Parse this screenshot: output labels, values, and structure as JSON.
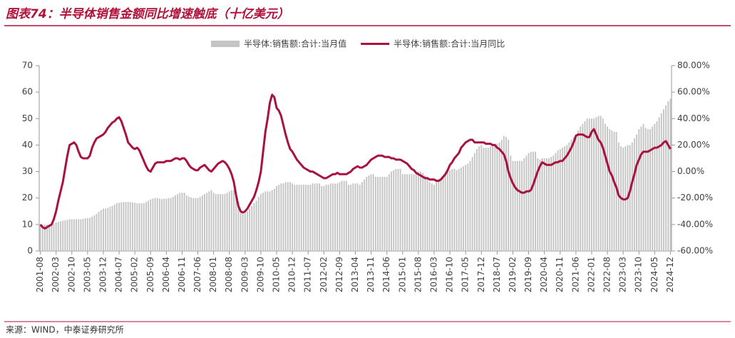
{
  "chart_data": {
    "type": "bar-line",
    "title": "图表74：半导体销售金额同比增速触底（十亿美元）",
    "source": "来源：WIND，中泰证券研究所",
    "categories": [
      "2001-08",
      null,
      null,
      null,
      null,
      null,
      null,
      "2002-03",
      null,
      null,
      null,
      null,
      null,
      null,
      "2002-10",
      null,
      null,
      null,
      null,
      null,
      null,
      "2003-05",
      null,
      null,
      null,
      null,
      null,
      null,
      "2003-12",
      null,
      null,
      null,
      null,
      null,
      null,
      "2004-07",
      null,
      null,
      null,
      null,
      null,
      null,
      "2005-02",
      null,
      null,
      null,
      null,
      null,
      null,
      "2005-09",
      null,
      null,
      null,
      null,
      null,
      null,
      "2006-04",
      null,
      null,
      null,
      null,
      null,
      null,
      "2006-11",
      null,
      null,
      null,
      null,
      null,
      null,
      "2007-06",
      null,
      null,
      null,
      null,
      null,
      null,
      "2008-01",
      null,
      null,
      null,
      null,
      null,
      null,
      "2008-08",
      null,
      null,
      null,
      null,
      null,
      null,
      "2009-03",
      null,
      null,
      null,
      null,
      null,
      null,
      "2009-10",
      null,
      null,
      null,
      null,
      null,
      null,
      "2010-05",
      null,
      null,
      null,
      null,
      null,
      null,
      "2010-12",
      null,
      null,
      null,
      null,
      null,
      null,
      "2011-07",
      null,
      null,
      null,
      null,
      null,
      null,
      "2012-02",
      null,
      null,
      null,
      null,
      null,
      null,
      "2012-09",
      null,
      null,
      null,
      null,
      null,
      null,
      "2013-04",
      null,
      null,
      null,
      null,
      null,
      null,
      "2013-11",
      null,
      null,
      null,
      null,
      null,
      null,
      "2014-06",
      null,
      null,
      null,
      null,
      null,
      null,
      "2015-01",
      null,
      null,
      null,
      null,
      null,
      null,
      "2015-08",
      null,
      null,
      null,
      null,
      null,
      null,
      "2016-03",
      null,
      null,
      null,
      null,
      null,
      null,
      "2016-10",
      null,
      null,
      null,
      null,
      null,
      null,
      "2017-05",
      null,
      null,
      null,
      null,
      null,
      null,
      "2017-12",
      null,
      null,
      null,
      null,
      null,
      null,
      "2018-07",
      null,
      null,
      null,
      null,
      null,
      null,
      "2019-02",
      null,
      null,
      null,
      null,
      null,
      null,
      "2019-09",
      null,
      null,
      null,
      null,
      null,
      null,
      "2020-04",
      null,
      null,
      null,
      null,
      null,
      null,
      "2020-11",
      null,
      null,
      null,
      null,
      null,
      null,
      "2021-06",
      null,
      null,
      null,
      null,
      null,
      null,
      "2022-01",
      null,
      null,
      null,
      null,
      null,
      null,
      "2022-08",
      null,
      null,
      null,
      null,
      null,
      null,
      "2023-03",
      null,
      null,
      null,
      null,
      null,
      null,
      "2023-10",
      null,
      null,
      null,
      null,
      null,
      null,
      "2024-05",
      null,
      null,
      null,
      null,
      null,
      null,
      "2024-12"
    ],
    "series": [
      {
        "name": "半导体:销售额:合计:当月值",
        "type": "bar",
        "color": "#c4c4c4",
        "values": [
          9.5,
          10,
          10,
          10,
          10,
          10.2,
          10.4,
          10.8,
          11,
          11.2,
          11.5,
          11.6,
          11.8,
          12,
          12,
          12,
          12,
          12,
          12,
          12.2,
          12.3,
          12.4,
          12.5,
          13,
          13.5,
          14,
          14.8,
          15.5,
          16,
          16,
          16.3,
          16.7,
          17,
          17.5,
          18,
          18.2,
          18.4,
          18.5,
          18.5,
          18.5,
          18.5,
          18.3,
          18.2,
          18,
          18,
          18,
          18,
          18.5,
          19,
          19.5,
          19.8,
          20,
          20,
          19.8,
          19.6,
          19.7,
          19.8,
          20,
          20,
          20.5,
          21,
          21.5,
          22,
          22,
          22,
          21,
          20.5,
          20.2,
          20,
          20,
          20,
          20.5,
          21,
          21.5,
          22,
          22.5,
          23,
          22,
          21.5,
          21.5,
          21.5,
          21.5,
          21.5,
          22,
          22.5,
          23,
          23,
          21,
          18,
          15,
          14,
          14.5,
          15,
          16,
          17,
          18,
          19,
          20.5,
          21.5,
          22,
          22.5,
          22.5,
          22.5,
          23,
          23.5,
          24.5,
          25,
          25.5,
          25.5,
          26,
          26,
          26,
          25.5,
          25,
          25,
          25,
          25,
          25,
          25,
          25,
          25,
          25.5,
          25.5,
          25.5,
          25.5,
          24.5,
          24.5,
          25,
          25,
          25.5,
          25.5,
          25.5,
          25.5,
          26,
          26.5,
          26.5,
          26.5,
          25,
          25,
          25.5,
          25.5,
          25.5,
          25,
          26,
          27,
          28,
          28.5,
          29,
          29,
          28,
          28,
          28,
          28,
          28,
          28,
          29,
          30,
          30.5,
          31,
          31,
          31,
          29,
          29,
          29,
          29,
          29,
          29,
          29.5,
          30,
          30,
          29.5,
          28.5,
          28,
          26,
          25.5,
          25,
          26,
          27,
          27.5,
          28,
          29,
          30,
          30.5,
          31,
          31,
          30.5,
          31,
          31.5,
          32,
          32.5,
          33,
          34,
          35.5,
          37,
          38.5,
          39.5,
          40,
          39,
          39,
          39,
          39.5,
          40,
          40,
          40.5,
          41,
          42,
          43.5,
          43,
          42,
          36,
          34,
          34,
          34,
          34,
          34,
          35,
          36,
          37,
          37.5,
          37.5,
          37.5,
          35,
          34.5,
          35,
          35,
          35,
          35,
          35.5,
          36,
          37,
          38,
          38.5,
          39,
          39.5,
          40,
          41,
          42,
          43,
          44,
          45.5,
          47,
          48,
          49,
          50,
          50,
          50,
          50,
          50.5,
          51,
          51,
          50,
          48,
          47,
          46,
          45.5,
          45,
          45,
          41,
          39.5,
          39,
          39.5,
          40,
          40,
          41,
          42.5,
          44,
          46,
          47,
          48,
          46.5,
          46,
          46,
          47,
          48,
          49,
          50.5,
          52,
          53.5,
          55,
          56.5,
          57.5
        ]
      },
      {
        "name": "半导体:销售额:合计:当月同比",
        "type": "line",
        "axis": "y2",
        "color": "#a8123e",
        "values": [
          -40,
          -42,
          -43,
          -42,
          -41,
          -40,
          -36,
          -30,
          -22,
          -15,
          -8,
          2,
          12,
          20,
          21,
          22,
          20,
          15,
          11,
          10,
          10,
          10,
          12,
          18,
          22,
          25,
          26,
          27,
          28,
          30,
          33,
          35,
          37,
          38,
          40,
          41,
          38,
          33,
          28,
          22,
          20,
          18,
          17,
          18,
          16,
          12,
          8,
          4,
          1,
          0,
          3,
          6,
          7,
          7,
          7,
          7,
          8,
          8,
          8,
          9,
          10,
          10,
          9,
          10,
          10,
          8,
          5,
          3,
          2,
          1,
          1,
          3,
          4,
          5,
          3,
          1,
          0,
          2,
          4,
          6,
          7,
          8,
          7,
          5,
          2,
          -2,
          -8,
          -18,
          -26,
          -30,
          -31,
          -30,
          -28,
          -25,
          -22,
          -19,
          -14,
          -8,
          0,
          15,
          30,
          40,
          52,
          58,
          56,
          48,
          46,
          42,
          35,
          28,
          22,
          17,
          15,
          12,
          9,
          7,
          5,
          3,
          2,
          1,
          0,
          0,
          -1,
          -2,
          -3,
          -4,
          -5,
          -5,
          -4,
          -3,
          -2,
          -2,
          -1,
          -2,
          -2,
          -2,
          -2,
          -1,
          0,
          2,
          3,
          4,
          3,
          3,
          4,
          5,
          7,
          9,
          10,
          11,
          12,
          12,
          12,
          11,
          11,
          11,
          10,
          10,
          9,
          9,
          9,
          8,
          7,
          6,
          4,
          2,
          1,
          -1,
          -2,
          -3,
          -4,
          -5,
          -5,
          -6,
          -6,
          -6,
          -7,
          -7,
          -6,
          -4,
          -2,
          1,
          5,
          7,
          10,
          12,
          14,
          18,
          20,
          22,
          23,
          24,
          24,
          22,
          22,
          22,
          22,
          22,
          21,
          21,
          21,
          20,
          20,
          18,
          17,
          15,
          13,
          8,
          0,
          -5,
          -9,
          -12,
          -14,
          -15,
          -16,
          -16,
          -15,
          -15,
          -14,
          -10,
          -5,
          0,
          4,
          7,
          6,
          5,
          5,
          5,
          6,
          7,
          7,
          8,
          8,
          10,
          12,
          15,
          18,
          22,
          27,
          28,
          28,
          28,
          27,
          26,
          26,
          30,
          32,
          28,
          24,
          22,
          18,
          12,
          6,
          0,
          -3,
          -8,
          -12,
          -18,
          -20,
          -21,
          -21,
          -20,
          -15,
          -8,
          -2,
          5,
          9,
          13,
          15,
          15,
          15,
          16,
          17,
          18,
          18,
          19,
          20,
          22,
          23,
          20,
          17
        ]
      }
    ],
    "ylim": [
      0,
      70
    ],
    "yticks": [
      0,
      10,
      20,
      30,
      40,
      50,
      60,
      70
    ],
    "y2lim": [
      -60,
      80
    ],
    "y2ticks": [
      {
        "value": -60,
        "label": "-60.00%"
      },
      {
        "value": -40,
        "label": "-40.00%"
      },
      {
        "value": -20,
        "label": "-20.00%"
      },
      {
        "value": 0,
        "label": "0.00%"
      },
      {
        "value": 20,
        "label": "20.00%"
      },
      {
        "value": 40,
        "label": "40.00%"
      },
      {
        "value": 60,
        "label": "60.00%"
      },
      {
        "value": 80,
        "label": "80.00%"
      }
    ],
    "legend": "top"
  }
}
